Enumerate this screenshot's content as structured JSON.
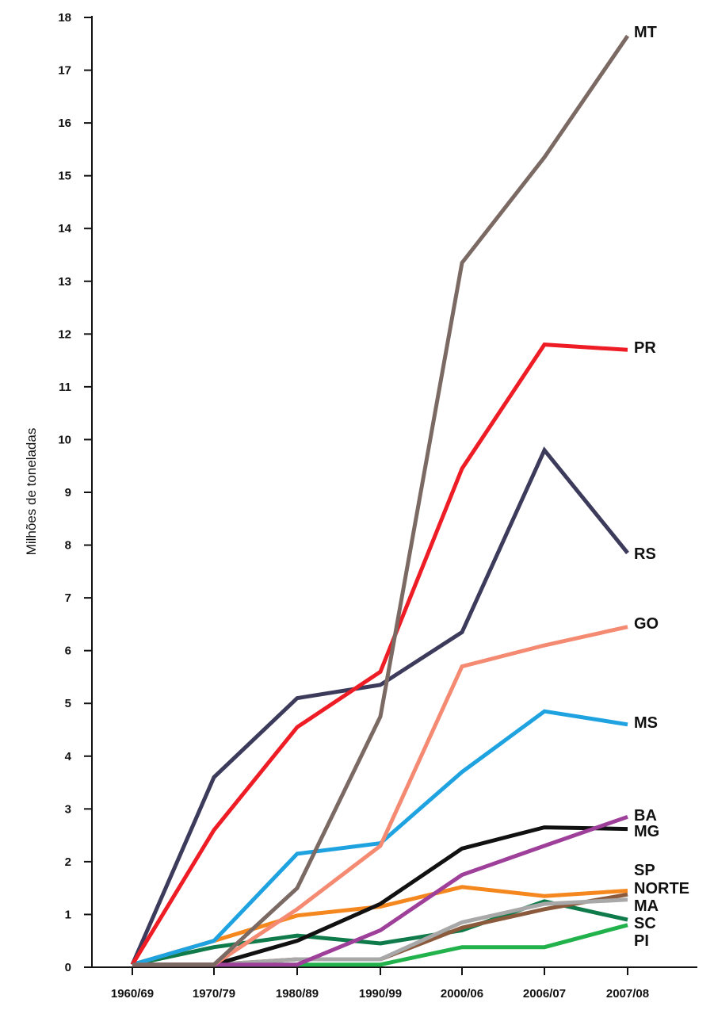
{
  "chart_data": {
    "type": "line",
    "title": "",
    "ylabel": "Milhões de toneladas",
    "xlabel": "",
    "categories": [
      "1960/69",
      "1970/79",
      "1980/89",
      "1990/99",
      "2000/06",
      "2006/07",
      "2007/08"
    ],
    "ylim": [
      0,
      18
    ],
    "yticks": [
      "0",
      "1",
      "2",
      "3",
      "4",
      "5",
      "6",
      "7",
      "8",
      "9",
      "10",
      "11",
      "12",
      "13",
      "14",
      "15",
      "16",
      "17",
      "18"
    ],
    "grid": false,
    "series": [
      {
        "name": "MT",
        "color": "#7b6a64",
        "values": [
          0.05,
          0.05,
          1.5,
          4.75,
          13.35,
          15.35,
          17.65
        ]
      },
      {
        "name": "PR",
        "color": "#ee1c25",
        "values": [
          0.05,
          2.6,
          4.55,
          5.6,
          9.45,
          11.8,
          11.7
        ]
      },
      {
        "name": "RS",
        "color": "#3d3b5c",
        "values": [
          0.05,
          3.6,
          5.1,
          5.35,
          6.35,
          9.8,
          7.85
        ]
      },
      {
        "name": "GO",
        "color": "#f58a72",
        "values": [
          0.05,
          0.05,
          1.1,
          2.3,
          5.7,
          6.1,
          6.45
        ]
      },
      {
        "name": "MS",
        "color": "#1fa3e0",
        "values": [
          0.05,
          0.5,
          2.15,
          2.35,
          3.7,
          4.85,
          4.6
        ]
      },
      {
        "name": "BA",
        "color": "#9e3f9a",
        "values": [
          0.05,
          0.05,
          0.05,
          0.7,
          1.75,
          2.3,
          2.85
        ]
      },
      {
        "name": "MG",
        "color": "#111111",
        "values": [
          0.05,
          0.05,
          0.5,
          1.2,
          2.25,
          2.65,
          2.62
        ]
      },
      {
        "name": "SP",
        "color": "#a8a8a8",
        "values": [
          0.05,
          0.05,
          0.15,
          0.15,
          0.85,
          1.2,
          1.28
        ]
      },
      {
        "name": "NORTE",
        "color": "#f5871f",
        "values": [
          0.05,
          0.5,
          0.98,
          1.15,
          1.52,
          1.35,
          1.45
        ]
      },
      {
        "name": "MA",
        "color": "#8b5a3c",
        "values": [
          0.05,
          0.05,
          0.15,
          0.15,
          0.75,
          1.1,
          1.38
        ]
      },
      {
        "name": "SC",
        "color": "#0f7a4a",
        "values": [
          0.05,
          0.38,
          0.6,
          0.45,
          0.7,
          1.25,
          0.9
        ]
      },
      {
        "name": "PI",
        "color": "#22b24c",
        "values": [
          0.05,
          0.05,
          0.05,
          0.05,
          0.38,
          0.38,
          0.8
        ]
      }
    ]
  }
}
